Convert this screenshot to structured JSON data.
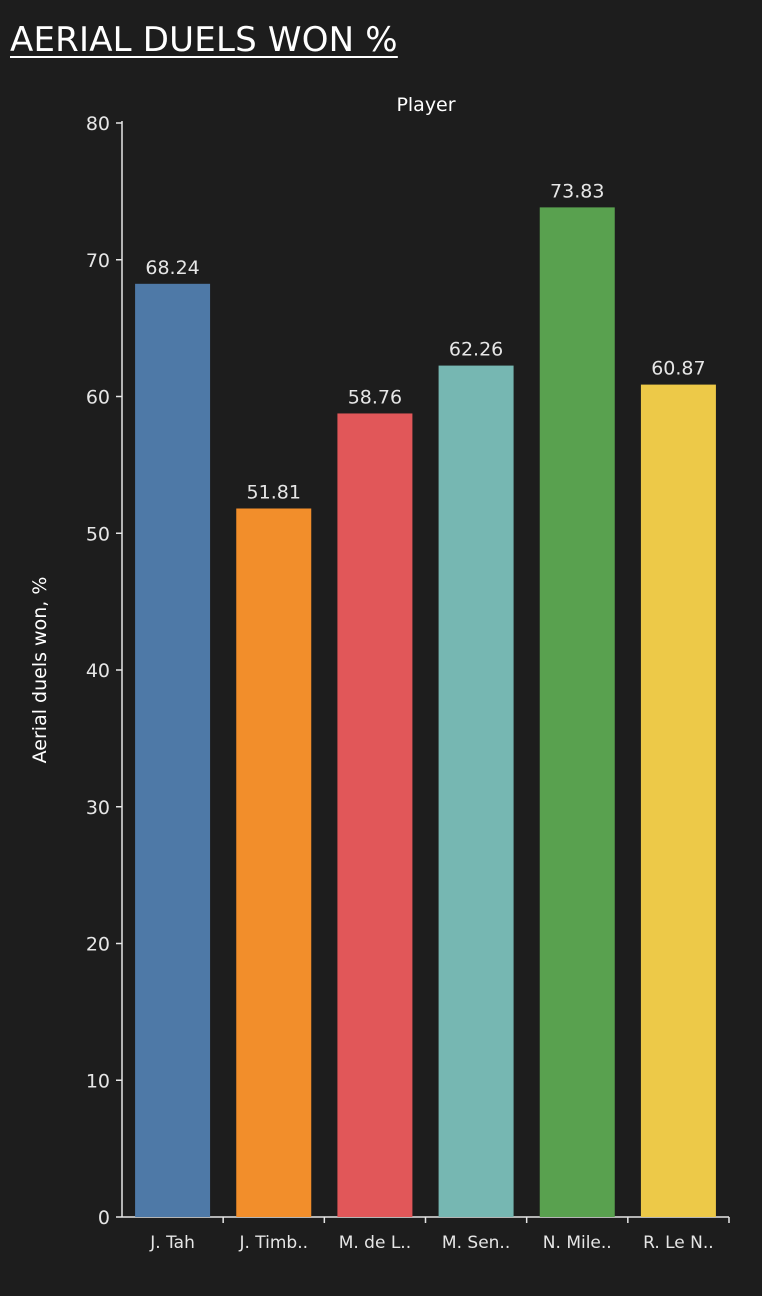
{
  "title": "AERIAL DUELS WON %",
  "colors": {
    "background": "#1d1d1d",
    "axis": "#e6e6e6",
    "text": "#e6e6e6"
  },
  "chart_data": {
    "type": "bar",
    "title": "AERIAL DUELS WON %",
    "xlabel": "Player",
    "ylabel": "Aerial duels won, %",
    "categories": [
      "J. Tah",
      "J. Timb..",
      "M. de L..",
      "M. Sen..",
      "N. Mile..",
      "R. Le N.."
    ],
    "values": [
      68.24,
      51.81,
      58.76,
      62.26,
      73.83,
      60.87
    ],
    "value_labels": [
      "68.24",
      "51.81",
      "58.76",
      "62.26",
      "73.83",
      "60.87"
    ],
    "colors": [
      "#4e79a7",
      "#f28e2b",
      "#e15759",
      "#76b7b2",
      "#59a14f",
      "#edc948"
    ],
    "ylim": [
      0,
      80
    ],
    "yticks": [
      0,
      10,
      20,
      30,
      40,
      50,
      60,
      70,
      80
    ],
    "grid": false,
    "legend": "none"
  }
}
